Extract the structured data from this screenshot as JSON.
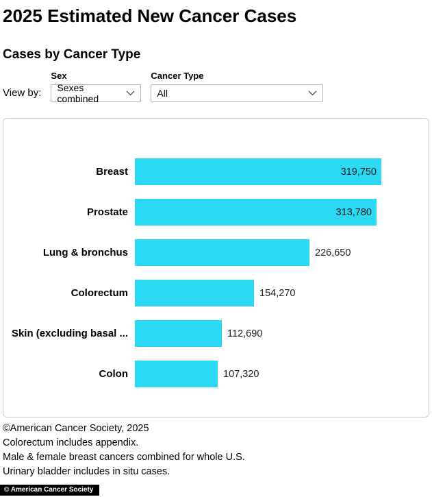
{
  "page": {
    "title": "2025 Estimated New Cancer Cases",
    "subtitle": "Cases by Cancer Type",
    "view_by_label": "View by:",
    "controls": {
      "sex_label": "Sex",
      "sex_value": "Sexes combined",
      "cancer_type_label": "Cancer Type",
      "cancer_type_value": "All"
    },
    "footnotes": [
      "©American Cancer Society, 2025",
      "Colorectum includes appendix.",
      "Male & female breast cancers combined for whole U.S.",
      "Urinary bladder includes in situ cases."
    ],
    "badge": "© American Cancer Society"
  },
  "chart_data": {
    "type": "bar",
    "orientation": "horizontal",
    "title": "Cases by Cancer Type",
    "categories": [
      "Breast",
      "Prostate",
      "Lung & bronchus",
      "Colorectum",
      "Skin (excluding basal ...",
      "Colon"
    ],
    "values": [
      319750,
      313780,
      226650,
      154270,
      112690,
      107320
    ],
    "value_labels": [
      "319,750",
      "313,780",
      "226,650",
      "154,270",
      "112,690",
      "107,320"
    ],
    "bar_color": "#2BD9F2",
    "xlim": [
      0,
      330000
    ],
    "grid": false,
    "legend": "none"
  }
}
